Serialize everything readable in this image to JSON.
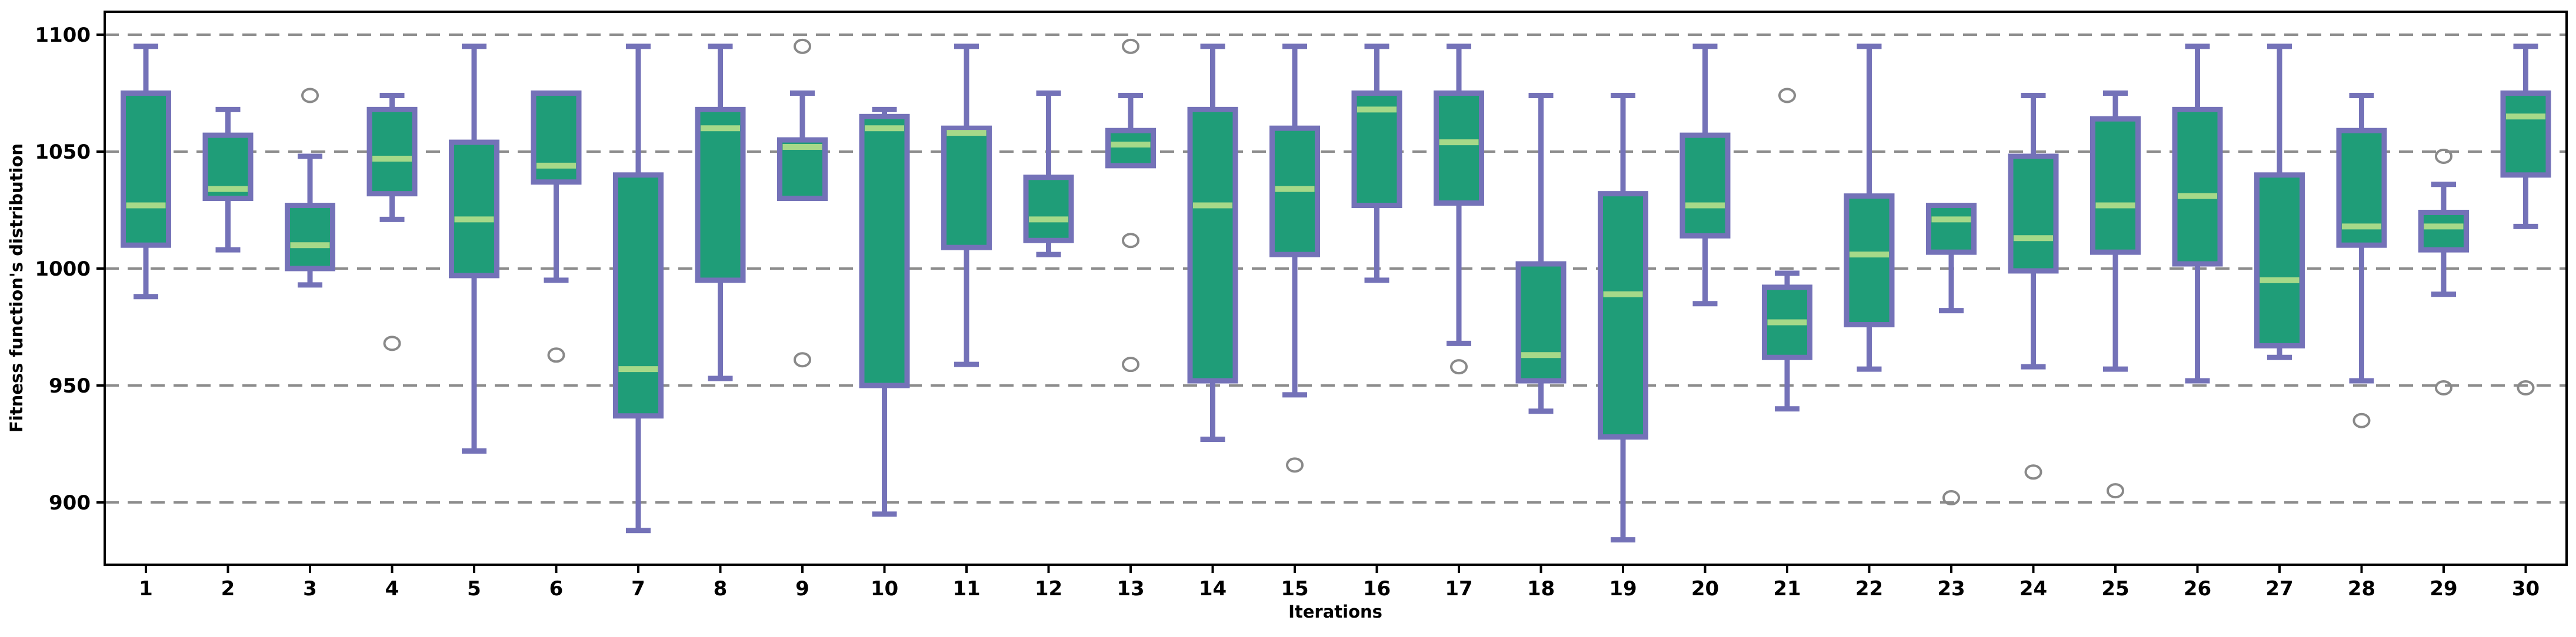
{
  "chart_data": {
    "type": "boxplot",
    "title": "",
    "xlabel": "Iterations",
    "ylabel": "Fitness function's distribution",
    "categories": [
      1,
      2,
      3,
      4,
      5,
      6,
      7,
      8,
      9,
      10,
      11,
      12,
      13,
      14,
      15,
      16,
      17,
      18,
      19,
      20,
      21,
      22,
      23,
      24,
      25,
      26,
      27,
      28,
      29,
      30
    ],
    "yticks": [
      900,
      950,
      1000,
      1050,
      1100
    ],
    "ylim": [
      873,
      1110
    ],
    "grid": "horizontal-dashed",
    "legend": "none",
    "colors": {
      "box_fill": "#1f9d78",
      "box_edge": "#7472b8",
      "median": "#a6d989",
      "outlier": "#898989",
      "gridline": "#8c8c8c",
      "spine": "#000000"
    },
    "boxes": [
      {
        "iteration": 1,
        "whisker_low": 988,
        "q1": 1010,
        "median": 1027,
        "q3": 1075,
        "whisker_high": 1095,
        "outliers": []
      },
      {
        "iteration": 2,
        "whisker_low": 1008,
        "q1": 1030,
        "median": 1034,
        "q3": 1057,
        "whisker_high": 1068,
        "outliers": []
      },
      {
        "iteration": 3,
        "whisker_low": 993,
        "q1": 1000,
        "median": 1010,
        "q3": 1027,
        "whisker_high": 1048,
        "outliers": [
          1074
        ]
      },
      {
        "iteration": 4,
        "whisker_low": 1021,
        "q1": 1032,
        "median": 1047,
        "q3": 1068,
        "whisker_high": 1074,
        "outliers": [
          968
        ]
      },
      {
        "iteration": 5,
        "whisker_low": 922,
        "q1": 997,
        "median": 1021,
        "q3": 1054,
        "whisker_high": 1095,
        "outliers": []
      },
      {
        "iteration": 6,
        "whisker_low": 995,
        "q1": 1037,
        "median": 1044,
        "q3": 1075,
        "whisker_high": 1075,
        "outliers": [
          963
        ]
      },
      {
        "iteration": 7,
        "whisker_low": 888,
        "q1": 937,
        "median": 957,
        "q3": 1040,
        "whisker_high": 1095,
        "outliers": []
      },
      {
        "iteration": 8,
        "whisker_low": 953,
        "q1": 995,
        "median": 1060,
        "q3": 1068,
        "whisker_high": 1095,
        "outliers": []
      },
      {
        "iteration": 9,
        "whisker_low": 1030,
        "q1": 1030,
        "median": 1052,
        "q3": 1055,
        "whisker_high": 1075,
        "outliers": [
          1095,
          961
        ]
      },
      {
        "iteration": 10,
        "whisker_low": 895,
        "q1": 950,
        "median": 1060,
        "q3": 1065,
        "whisker_high": 1068,
        "outliers": []
      },
      {
        "iteration": 11,
        "whisker_low": 959,
        "q1": 1009,
        "median": 1058,
        "q3": 1060,
        "whisker_high": 1095,
        "outliers": []
      },
      {
        "iteration": 12,
        "whisker_low": 1006,
        "q1": 1012,
        "median": 1021,
        "q3": 1039,
        "whisker_high": 1075,
        "outliers": []
      },
      {
        "iteration": 13,
        "whisker_low": 1044,
        "q1": 1044,
        "median": 1053,
        "q3": 1059,
        "whisker_high": 1074,
        "outliers": [
          1095,
          1012,
          959
        ]
      },
      {
        "iteration": 14,
        "whisker_low": 927,
        "q1": 952,
        "median": 1027,
        "q3": 1068,
        "whisker_high": 1095,
        "outliers": []
      },
      {
        "iteration": 15,
        "whisker_low": 946,
        "q1": 1006,
        "median": 1034,
        "q3": 1060,
        "whisker_high": 1095,
        "outliers": [
          916
        ]
      },
      {
        "iteration": 16,
        "whisker_low": 995,
        "q1": 1027,
        "median": 1068,
        "q3": 1075,
        "whisker_high": 1095,
        "outliers": []
      },
      {
        "iteration": 17,
        "whisker_low": 968,
        "q1": 1028,
        "median": 1054,
        "q3": 1075,
        "whisker_high": 1095,
        "outliers": [
          958
        ]
      },
      {
        "iteration": 18,
        "whisker_low": 939,
        "q1": 952,
        "median": 963,
        "q3": 1002,
        "whisker_high": 1074,
        "outliers": []
      },
      {
        "iteration": 19,
        "whisker_low": 884,
        "q1": 928,
        "median": 989,
        "q3": 1032,
        "whisker_high": 1074,
        "outliers": []
      },
      {
        "iteration": 20,
        "whisker_low": 985,
        "q1": 1014,
        "median": 1027,
        "q3": 1057,
        "whisker_high": 1095,
        "outliers": []
      },
      {
        "iteration": 21,
        "whisker_low": 940,
        "q1": 962,
        "median": 977,
        "q3": 992,
        "whisker_high": 998,
        "outliers": [
          1074
        ]
      },
      {
        "iteration": 22,
        "whisker_low": 957,
        "q1": 976,
        "median": 1006,
        "q3": 1031,
        "whisker_high": 1095,
        "outliers": []
      },
      {
        "iteration": 23,
        "whisker_low": 982,
        "q1": 1007,
        "median": 1021,
        "q3": 1027,
        "whisker_high": 1027,
        "outliers": [
          902
        ]
      },
      {
        "iteration": 24,
        "whisker_low": 958,
        "q1": 999,
        "median": 1013,
        "q3": 1048,
        "whisker_high": 1074,
        "outliers": [
          913
        ]
      },
      {
        "iteration": 25,
        "whisker_low": 957,
        "q1": 1007,
        "median": 1027,
        "q3": 1064,
        "whisker_high": 1075,
        "outliers": [
          905
        ]
      },
      {
        "iteration": 26,
        "whisker_low": 952,
        "q1": 1002,
        "median": 1031,
        "q3": 1068,
        "whisker_high": 1095,
        "outliers": []
      },
      {
        "iteration": 27,
        "whisker_low": 962,
        "q1": 967,
        "median": 995,
        "q3": 1040,
        "whisker_high": 1095,
        "outliers": []
      },
      {
        "iteration": 28,
        "whisker_low": 952,
        "q1": 1010,
        "median": 1018,
        "q3": 1059,
        "whisker_high": 1074,
        "outliers": [
          935
        ]
      },
      {
        "iteration": 29,
        "whisker_low": 989,
        "q1": 1008,
        "median": 1018,
        "q3": 1024,
        "whisker_high": 1036,
        "outliers": [
          1048,
          949
        ]
      },
      {
        "iteration": 30,
        "whisker_low": 1018,
        "q1": 1040,
        "median": 1065,
        "q3": 1075,
        "whisker_high": 1095,
        "outliers": [
          949
        ]
      }
    ]
  }
}
